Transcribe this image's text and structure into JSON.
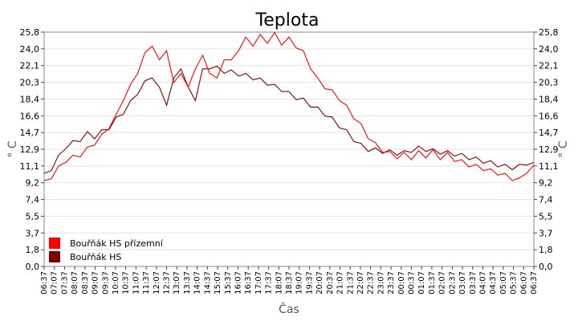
{
  "chart_data": {
    "type": "line",
    "title": "Teplota",
    "xlabel": "Čas",
    "ylabel": "° C",
    "ylabel_right": "° C",
    "yticks": [
      "0,0",
      "1,8",
      "3,7",
      "5,5",
      "7,4",
      "9,2",
      "11,1",
      "12,9",
      "14,7",
      "16,6",
      "18,4",
      "20,3",
      "22,1",
      "24,0",
      "25,8"
    ],
    "ylim": [
      0,
      25.8
    ],
    "grid": true,
    "legend_position": "bottom-left",
    "x_ticks": [
      "06:37",
      "07:07",
      "07:37",
      "08:07",
      "08:37",
      "09:07",
      "09:37",
      "10:07",
      "10:37",
      "11:07",
      "11:37",
      "12:07",
      "12:37",
      "13:07",
      "13:37",
      "14:07",
      "14:37",
      "15:07",
      "15:37",
      "16:07",
      "16:37",
      "17:07",
      "17:37",
      "18:07",
      "18:37",
      "19:07",
      "19:37",
      "20:07",
      "20:37",
      "21:07",
      "21:37",
      "22:07",
      "22:37",
      "23:07",
      "23:37",
      "00:07",
      "00:37",
      "01:07",
      "01:37",
      "02:07",
      "02:37",
      "03:07",
      "03:37",
      "04:07",
      "04:37",
      "05:07",
      "05:37",
      "06:07",
      "06:37"
    ],
    "series": [
      {
        "name": "Bouřňák HS přízemní",
        "color": "#ff0000",
        "points": [
          [
            0,
            9.2
          ],
          [
            1,
            9.9
          ],
          [
            2,
            10.8
          ],
          [
            3,
            11.7
          ],
          [
            4,
            12.0
          ],
          [
            5,
            12.3
          ],
          [
            6,
            12.9
          ],
          [
            7,
            13.6
          ],
          [
            8,
            14.3
          ],
          [
            9,
            15.4
          ],
          [
            10,
            16.5
          ],
          [
            11,
            18.5
          ],
          [
            12,
            19.8
          ],
          [
            13,
            21.5
          ],
          [
            14,
            23.3
          ],
          [
            15,
            24.5
          ],
          [
            16,
            22.5
          ],
          [
            17,
            24.0
          ],
          [
            18,
            20.0
          ],
          [
            19,
            21.5
          ],
          [
            20,
            19.5
          ],
          [
            21,
            22.0
          ],
          [
            22,
            23.0
          ],
          [
            23,
            21.5
          ],
          [
            24,
            20.5
          ],
          [
            25,
            23.0
          ],
          [
            26,
            22.5
          ],
          [
            27,
            24.0
          ],
          [
            28,
            25.0
          ],
          [
            29,
            24.5
          ],
          [
            30,
            25.3
          ],
          [
            31,
            24.8
          ],
          [
            32,
            25.5
          ],
          [
            33,
            24.6
          ],
          [
            34,
            25.0
          ],
          [
            35,
            24.3
          ],
          [
            36,
            23.5
          ],
          [
            37,
            22.0
          ],
          [
            38,
            20.5
          ],
          [
            39,
            19.8
          ],
          [
            40,
            19.2
          ],
          [
            41,
            18.5
          ],
          [
            42,
            17.5
          ],
          [
            43,
            16.5
          ],
          [
            44,
            15.5
          ],
          [
            45,
            14.3
          ],
          [
            46,
            13.4
          ],
          [
            47,
            12.8
          ],
          [
            48,
            12.4
          ],
          [
            49,
            12.1
          ],
          [
            50,
            12.3
          ],
          [
            51,
            12.0
          ],
          [
            52,
            12.5
          ],
          [
            53,
            12.2
          ],
          [
            54,
            12.6
          ],
          [
            55,
            12.0
          ],
          [
            56,
            12.3
          ],
          [
            57,
            11.8
          ],
          [
            58,
            11.5
          ],
          [
            59,
            11.2
          ],
          [
            60,
            11.0
          ],
          [
            61,
            10.8
          ],
          [
            62,
            10.5
          ],
          [
            63,
            10.3
          ],
          [
            64,
            10.0
          ],
          [
            65,
            9.7
          ],
          [
            66,
            9.5
          ],
          [
            67,
            10.5
          ],
          [
            68,
            10.9
          ]
        ]
      },
      {
        "name": "Bouřňák HS",
        "color": "#800000",
        "points": [
          [
            0,
            10.0
          ],
          [
            1,
            10.8
          ],
          [
            2,
            12.0
          ],
          [
            3,
            13.2
          ],
          [
            4,
            13.6
          ],
          [
            5,
            14.0
          ],
          [
            6,
            14.6
          ],
          [
            7,
            14.3
          ],
          [
            8,
            14.8
          ],
          [
            9,
            15.3
          ],
          [
            10,
            16.2
          ],
          [
            11,
            17.0
          ],
          [
            12,
            18.0
          ],
          [
            13,
            19.2
          ],
          [
            14,
            20.2
          ],
          [
            15,
            21.0
          ],
          [
            16,
            19.5
          ],
          [
            17,
            18.0
          ],
          [
            18,
            20.5
          ],
          [
            19,
            22.0
          ],
          [
            20,
            19.5
          ],
          [
            21,
            18.5
          ],
          [
            22,
            21.5
          ],
          [
            23,
            22.0
          ],
          [
            24,
            21.8
          ],
          [
            25,
            21.5
          ],
          [
            26,
            21.4
          ],
          [
            27,
            21.2
          ],
          [
            28,
            21.0
          ],
          [
            29,
            20.8
          ],
          [
            30,
            20.5
          ],
          [
            31,
            20.2
          ],
          [
            32,
            19.8
          ],
          [
            33,
            19.5
          ],
          [
            34,
            19.0
          ],
          [
            35,
            18.6
          ],
          [
            36,
            18.3
          ],
          [
            37,
            17.8
          ],
          [
            38,
            17.3
          ],
          [
            39,
            16.8
          ],
          [
            40,
            16.2
          ],
          [
            41,
            15.5
          ],
          [
            42,
            14.8
          ],
          [
            43,
            14.0
          ],
          [
            44,
            13.3
          ],
          [
            45,
            12.9
          ],
          [
            46,
            12.8
          ],
          [
            47,
            12.7
          ],
          [
            48,
            12.6
          ],
          [
            49,
            12.5
          ],
          [
            50,
            12.5
          ],
          [
            51,
            12.8
          ],
          [
            52,
            13.0
          ],
          [
            53,
            12.9
          ],
          [
            54,
            12.7
          ],
          [
            55,
            12.6
          ],
          [
            56,
            12.5
          ],
          [
            57,
            12.4
          ],
          [
            58,
            12.2
          ],
          [
            59,
            12.0
          ],
          [
            60,
            11.8
          ],
          [
            61,
            11.6
          ],
          [
            62,
            11.4
          ],
          [
            63,
            11.2
          ],
          [
            64,
            11.0
          ],
          [
            65,
            10.9
          ],
          [
            66,
            11.0
          ],
          [
            67,
            11.4
          ],
          [
            68,
            11.2
          ]
        ]
      }
    ]
  }
}
